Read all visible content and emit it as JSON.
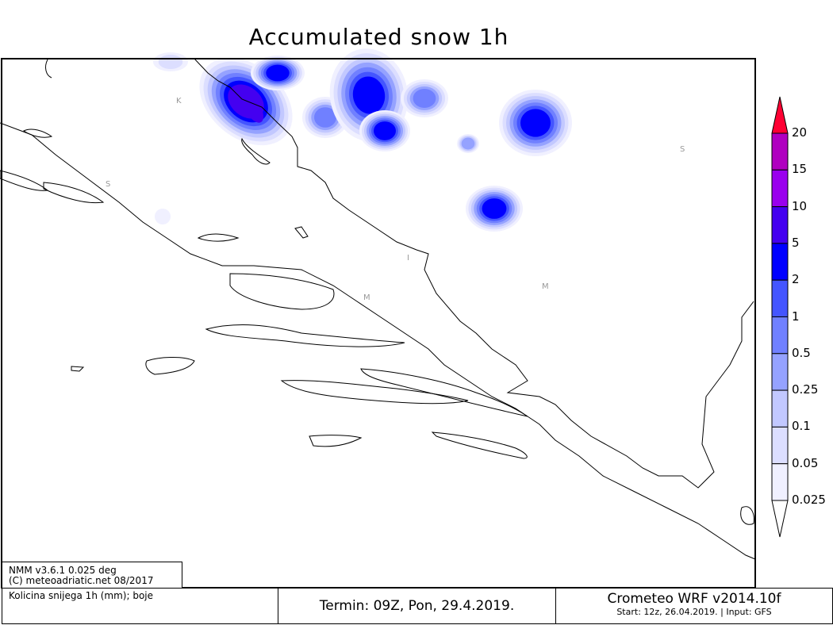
{
  "title": "Accumulated snow 1h",
  "info_box": {
    "line1": "NMM v3.6.1 0.025 deg",
    "line2": "(C) meteoadriatic.net 08/2017"
  },
  "footer": {
    "variable": "Kolicina snijega 1h (mm); boje",
    "termin": "Termin: 09Z, Pon, 29.4.2019.",
    "model": "Crometeo WRF v2014.10f",
    "run": "Start: 12z, 26.04.2019. | Input: GFS"
  },
  "legend": {
    "labels": [
      "20",
      "15",
      "10",
      "5",
      "2",
      "1",
      "0.5",
      "0.25",
      "0.1",
      "0.05",
      "0.025"
    ],
    "colors": [
      "#ff0033",
      "#b000c0",
      "#9a00ee",
      "#4400f0",
      "#0000ff",
      "#4455ff",
      "#7080ff",
      "#95a2ff",
      "#c2c8ff",
      "#dcdeff",
      "#f0f0ff"
    ]
  },
  "place_labels": [
    "K",
    "S",
    "I",
    "M",
    "M",
    "S"
  ]
}
